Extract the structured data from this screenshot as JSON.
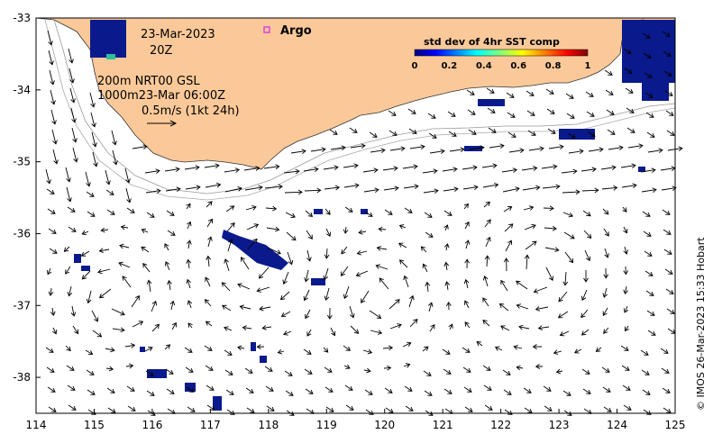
{
  "map": {
    "date": "23-Mar-2023",
    "hour": "20Z",
    "depth_line1": "200m  NRT00 GSL",
    "depth_line2": "1000m23-Mar 06:00Z",
    "scale_label": "0.5m/s (1kt 24h)",
    "argo_label": "Argo",
    "credit": "© IMOS 26-Mar-2023 15:33 Hobart",
    "lon_range": [
      114,
      125
    ],
    "lat_range": [
      -38.5,
      -33
    ],
    "x_ticks": [
      "114",
      "115",
      "116",
      "117",
      "118",
      "119",
      "120",
      "121",
      "122",
      "123",
      "124",
      "125"
    ],
    "y_ticks": [
      "-33",
      "-34",
      "-35",
      "-36",
      "-37",
      "-38"
    ],
    "colors": {
      "land": "#fbc999",
      "ocean": "#ffffff",
      "argo": "#e040e0",
      "cloud": "#0a1a8c"
    }
  },
  "colorbar": {
    "title": "std dev of 4hr SST comp",
    "ticks": [
      "0",
      "0.2",
      "0.4",
      "0.6",
      "0.8",
      "1"
    ]
  }
}
